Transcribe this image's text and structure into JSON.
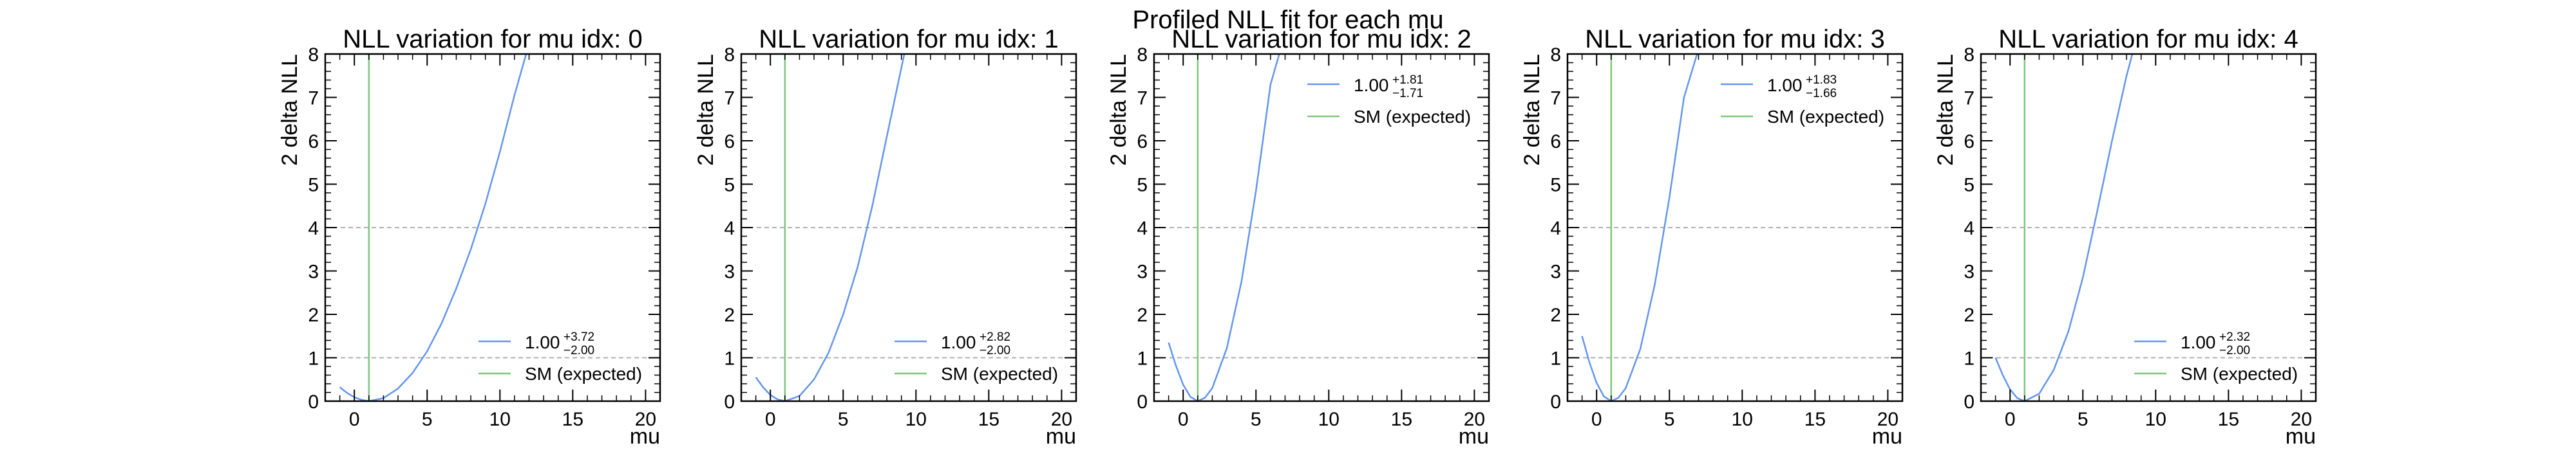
{
  "figure": {
    "suptitle": "Profiled NLL fit for each mu"
  },
  "chart_data": [
    {
      "type": "line",
      "title": "NLL variation for mu idx: 0",
      "xlabel": "mu",
      "ylabel": "2 delta NLL",
      "xlim": [
        -2,
        21
      ],
      "ylim": [
        0,
        8
      ],
      "xticks": [
        "0",
        "5",
        "10",
        "15",
        "20"
      ],
      "yticks": [
        "0",
        "1",
        "2",
        "3",
        "4",
        "5",
        "6",
        "7",
        "8"
      ],
      "hlines": [
        1,
        4
      ],
      "legend_position": "lower-right",
      "series": [
        {
          "legend_label": "1.00",
          "legend_sup": "+3.72",
          "legend_sub": "−2.00",
          "color": "#6495ED",
          "x": [
            -1,
            -0.5,
            0,
            0.5,
            1,
            2,
            3,
            4,
            5,
            6,
            7,
            8,
            9,
            10,
            11,
            11.8
          ],
          "y": [
            0.32,
            0.19,
            0.09,
            0.03,
            0,
            0.07,
            0.29,
            0.65,
            1.15,
            1.8,
            2.6,
            3.5,
            4.55,
            5.75,
            7.05,
            8.0
          ]
        },
        {
          "legend_label": "SM (expected)",
          "color": "#7CC77C",
          "vline_x": 1
        }
      ]
    },
    {
      "type": "line",
      "title": "NLL variation for mu idx: 1",
      "xlabel": "mu",
      "ylabel": "2 delta NLL",
      "xlim": [
        -2,
        21
      ],
      "ylim": [
        0,
        8
      ],
      "xticks": [
        "0",
        "5",
        "10",
        "15",
        "20"
      ],
      "yticks": [
        "0",
        "1",
        "2",
        "3",
        "4",
        "5",
        "6",
        "7",
        "8"
      ],
      "hlines": [
        1,
        4
      ],
      "legend_position": "lower-right",
      "series": [
        {
          "legend_label": "1.00",
          "legend_sup": "+2.82",
          "legend_sub": "−2.00",
          "color": "#6495ED",
          "x": [
            -1,
            -0.5,
            0,
            0.5,
            1,
            2,
            3,
            4,
            5,
            6,
            7,
            8,
            9.2
          ],
          "y": [
            0.55,
            0.32,
            0.14,
            0.04,
            0,
            0.12,
            0.5,
            1.12,
            2.0,
            3.1,
            4.5,
            6.1,
            8.0
          ]
        },
        {
          "legend_label": "SM (expected)",
          "color": "#7CC77C",
          "vline_x": 1
        }
      ]
    },
    {
      "type": "line",
      "title": "NLL variation for mu idx: 2",
      "xlabel": "mu",
      "ylabel": "2 delta NLL",
      "xlim": [
        -2,
        21
      ],
      "ylim": [
        0,
        8
      ],
      "xticks": [
        "0",
        "5",
        "10",
        "15",
        "20"
      ],
      "yticks": [
        "0",
        "1",
        "2",
        "3",
        "4",
        "5",
        "6",
        "7",
        "8"
      ],
      "hlines": [
        1,
        4
      ],
      "legend_position": "upper-right",
      "series": [
        {
          "legend_label": "1.00",
          "legend_sup": "+1.81",
          "legend_sub": "−1.71",
          "color": "#6495ED",
          "x": [
            -1,
            -0.5,
            0,
            0.5,
            1,
            1.5,
            2,
            3,
            4,
            5,
            6,
            6.6
          ],
          "y": [
            1.35,
            0.82,
            0.38,
            0.1,
            0,
            0.08,
            0.3,
            1.22,
            2.75,
            4.85,
            7.3,
            8.0
          ]
        },
        {
          "legend_label": "SM (expected)",
          "color": "#7CC77C",
          "vline_x": 1
        }
      ]
    },
    {
      "type": "line",
      "title": "NLL variation for mu idx: 3",
      "xlabel": "mu",
      "ylabel": "2 delta NLL",
      "xlim": [
        -2,
        21
      ],
      "ylim": [
        0,
        8
      ],
      "xticks": [
        "0",
        "5",
        "10",
        "15",
        "20"
      ],
      "yticks": [
        "0",
        "1",
        "2",
        "3",
        "4",
        "5",
        "6",
        "7",
        "8"
      ],
      "hlines": [
        1,
        4
      ],
      "legend_position": "upper-right",
      "series": [
        {
          "legend_label": "1.00",
          "legend_sup": "+1.83",
          "legend_sub": "−1.66",
          "color": "#6495ED",
          "x": [
            -1,
            -0.5,
            0,
            0.5,
            1,
            1.5,
            2,
            3,
            4,
            5,
            6,
            6.9
          ],
          "y": [
            1.5,
            0.9,
            0.42,
            0.11,
            0,
            0.08,
            0.3,
            1.2,
            2.7,
            4.7,
            7.0,
            8.0
          ]
        },
        {
          "legend_label": "SM (expected)",
          "color": "#7CC77C",
          "vline_x": 1
        }
      ]
    },
    {
      "type": "line",
      "title": "NLL variation for mu idx: 4",
      "xlabel": "mu",
      "ylabel": "2 delta NLL",
      "xlim": [
        -2,
        21
      ],
      "ylim": [
        0,
        8
      ],
      "xticks": [
        "0",
        "5",
        "10",
        "15",
        "20"
      ],
      "yticks": [
        "0",
        "1",
        "2",
        "3",
        "4",
        "5",
        "6",
        "7",
        "8"
      ],
      "hlines": [
        1,
        4
      ],
      "legend_position": "lower-right",
      "series": [
        {
          "legend_label": "1.00",
          "legend_sup": "+2.32",
          "legend_sub": "−2.00",
          "color": "#6495ED",
          "x": [
            -1,
            -0.5,
            0,
            0.5,
            1,
            2,
            3,
            4,
            5,
            6,
            7,
            8,
            8.4
          ],
          "y": [
            1.0,
            0.6,
            0.27,
            0.07,
            0,
            0.17,
            0.72,
            1.6,
            2.85,
            4.4,
            6.0,
            7.5,
            8.0
          ]
        },
        {
          "legend_label": "SM (expected)",
          "color": "#7CC77C",
          "vline_x": 1
        }
      ]
    }
  ]
}
